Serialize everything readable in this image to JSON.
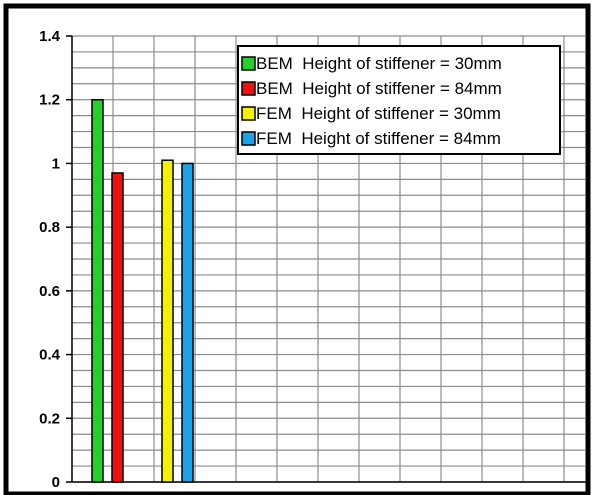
{
  "chart_data": {
    "type": "bar",
    "title": "",
    "xlabel": "",
    "ylabel": "",
    "ylim": [
      0,
      1.4
    ],
    "y_ticks": [
      "1.4",
      "1.2",
      "1",
      "0.8",
      "0.6",
      "0.4",
      "0.2",
      "0"
    ],
    "grid": true,
    "legend_position": "top-right",
    "series": [
      {
        "name": "BEM  Height of stiffener = 30mm",
        "values": [
          1.2
        ],
        "color": "#22d12a"
      },
      {
        "name": "BEM  Height of stiffener = 84mm",
        "values": [
          0.97
        ],
        "color": "#f01010"
      },
      {
        "name": "FEM  Height of stiffener = 30mm",
        "values": [
          1.01
        ],
        "color": "#f5f000"
      },
      {
        "name": "FEM  Height of stiffener = 84mm",
        "values": [
          1.0
        ],
        "color": "#1aa3e6"
      }
    ]
  }
}
